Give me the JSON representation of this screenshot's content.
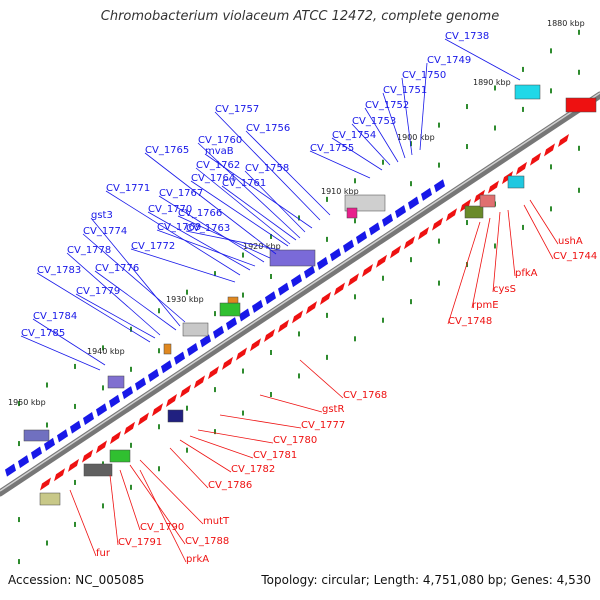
{
  "title": "Chromobacterium violaceum ATCC 12472, complete genome",
  "footer": {
    "accession": "Accession: NC_005085",
    "summary": "Topology: circular; Length: 4,751,080 bp; Genes: 4,530"
  },
  "kbp_ticks": [
    "1880 kbp",
    "1890 kbp",
    "1900 kbp",
    "1910 kbp",
    "1920 kbp",
    "1930 kbp",
    "1940 kbp",
    "1950 kbp"
  ],
  "genes_blue": [
    "CV_1738",
    "CV_1749",
    "CV_1750",
    "CV_1751",
    "CV_1752",
    "CV_1753",
    "CV_1754",
    "CV_1755",
    "CV_1756",
    "CV_1757",
    "mvaB",
    "CV_1758",
    "CV_1760",
    "CV_1761",
    "CV_1762",
    "CV_1763",
    "CV_1764",
    "CV_1765",
    "CV_1766",
    "CV_1767",
    "CV_1769",
    "CV_1770",
    "CV_1771",
    "CV_1772",
    "CV_1774",
    "gst3",
    "CV_1776",
    "CV_1778",
    "CV_1779",
    "CV_1783",
    "CV_1784",
    "CV_1785"
  ],
  "genes_red": [
    "ushA",
    "CV_1744",
    "pfkA",
    "cysS",
    "rpmE",
    "CV_1748",
    "CV_1768",
    "gstR",
    "CV_1777",
    "CV_1780",
    "CV_1781",
    "CV_1782",
    "CV_1786",
    "mutT",
    "CV_1788",
    "CV_1790",
    "CV_1791",
    "prkA",
    "fur"
  ],
  "colors": {
    "forward_strand": "#1818e8",
    "reverse_strand": "#ee1111",
    "backbone": "#777777",
    "tick_dot": "#2e8b2e"
  }
}
